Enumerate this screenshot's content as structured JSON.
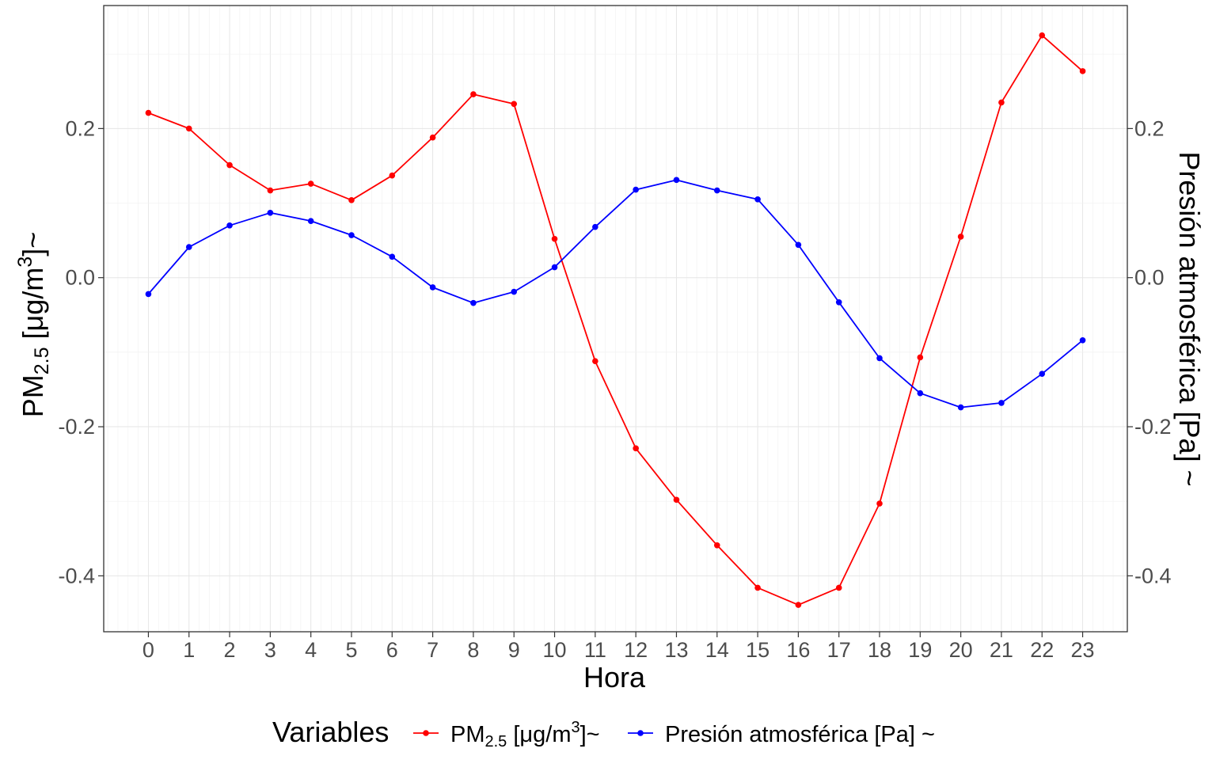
{
  "chart_data": {
    "type": "line",
    "title": "",
    "xlabel": "Hora",
    "ylabel_left": {
      "base": "PM",
      "sub": "2.5",
      "mid": " [μg/m",
      "sup": "3",
      "end": "]~"
    },
    "ylabel_right": "Presión atmosférica [Pa] ~",
    "x": [
      0,
      1,
      2,
      3,
      4,
      5,
      6,
      7,
      8,
      9,
      10,
      11,
      12,
      13,
      14,
      15,
      16,
      17,
      18,
      19,
      20,
      21,
      22,
      23
    ],
    "x_tick_labels": [
      "0",
      "1",
      "2",
      "3",
      "4",
      "5",
      "6",
      "7",
      "8",
      "9",
      "10",
      "11",
      "12",
      "13",
      "14",
      "15",
      "16",
      "17",
      "18",
      "19",
      "20",
      "21",
      "22",
      "23"
    ],
    "xlim": [
      -1.1,
      24.1
    ],
    "ylim": [
      -0.475,
      0.365
    ],
    "y_ticks": [
      -0.4,
      -0.2,
      0.0,
      0.2
    ],
    "y_tick_labels": [
      "-0.4",
      "-0.2",
      "0.0",
      "0.2"
    ],
    "grid": true,
    "legend_position": "bottom",
    "legend_title": "Variables",
    "series": [
      {
        "name": "PM2.5 [μg/m3]~",
        "label": {
          "base": "PM",
          "sub": "2.5",
          "mid": " [μg/m",
          "sup": "3",
          "end": "]~"
        },
        "color": "#ff0000",
        "values": [
          0.221,
          0.2,
          0.151,
          0.117,
          0.126,
          0.104,
          0.137,
          0.188,
          0.246,
          0.233,
          0.052,
          -0.112,
          -0.229,
          -0.298,
          -0.359,
          -0.416,
          -0.439,
          -0.416,
          -0.303,
          -0.107,
          0.055,
          0.235,
          0.325,
          0.277
        ]
      },
      {
        "name": "Presión atmosférica [Pa] ~",
        "label": {
          "base": "Presión atmosférica [Pa] ~"
        },
        "color": "#0000ff",
        "values": [
          -0.022,
          0.041,
          0.07,
          0.087,
          0.076,
          0.057,
          0.028,
          -0.013,
          -0.034,
          -0.019,
          0.014,
          0.068,
          0.118,
          0.131,
          0.117,
          0.105,
          0.044,
          -0.033,
          -0.108,
          -0.155,
          -0.174,
          -0.168,
          -0.129,
          -0.084
        ]
      }
    ]
  }
}
